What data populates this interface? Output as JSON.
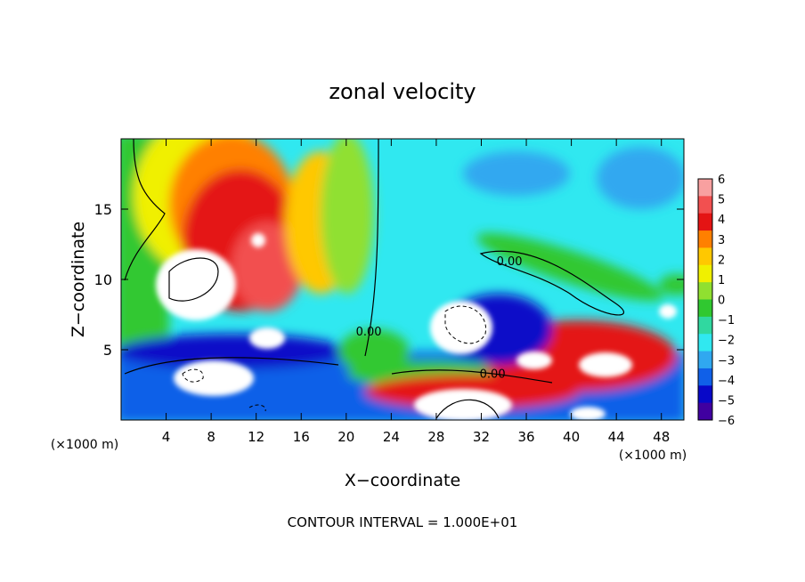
{
  "chart_data": {
    "type": "heatmap",
    "title": "zonal velocity",
    "xlabel": "X−coordinate",
    "ylabel": "Z−coordinate",
    "x_unit_left": "(×1000 m)",
    "x_unit_right": "(×1000 m)",
    "footer": "CONTOUR INTERVAL = 1.000E+01",
    "xlim": [
      0,
      50
    ],
    "ylim": [
      0,
      20
    ],
    "x_ticks": [
      4,
      8,
      12,
      16,
      20,
      24,
      28,
      32,
      36,
      40,
      44,
      48
    ],
    "y_ticks": [
      5,
      10,
      15
    ],
    "colorbar": {
      "levels": [
        6,
        5,
        4,
        3,
        2,
        1,
        0,
        -1,
        -2,
        -3,
        -4,
        -5,
        -6
      ],
      "colors": [
        "#f8a0a0",
        "#f25050",
        "#e41414",
        "#ff8000",
        "#ffc800",
        "#f0f000",
        "#90e030",
        "#30c830",
        "#30d8a0",
        "#30e8f0",
        "#30a8f0",
        "#1060e8",
        "#0808c8",
        "#4000a0"
      ]
    },
    "contour_labels": [
      {
        "text": "0.00",
        "x": 22,
        "z": 6
      },
      {
        "text": "0.00",
        "x": 34.5,
        "z": 11
      },
      {
        "text": "0.00",
        "x": 33,
        "z": 3
      }
    ],
    "grid": false,
    "legend": "colorbar-right"
  }
}
